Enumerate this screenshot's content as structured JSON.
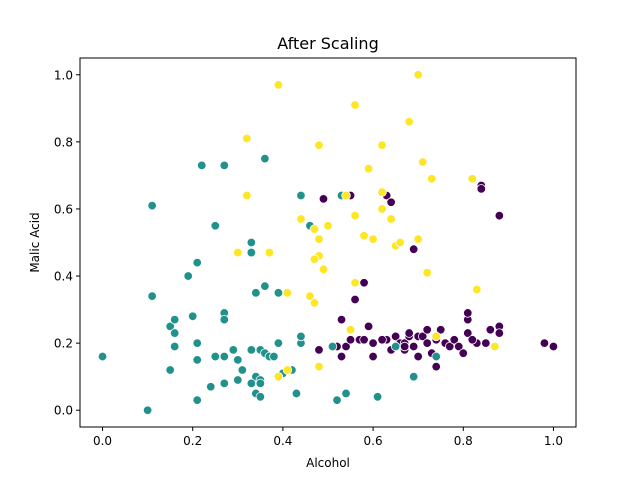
{
  "chart_data": {
    "type": "scatter",
    "title": "After Scaling",
    "xlabel": "Alcohol",
    "ylabel": "Malic Acid",
    "xlim": [
      -0.05,
      1.05
    ],
    "ylim": [
      -0.05,
      1.05
    ],
    "xticks": [
      0.0,
      0.2,
      0.4,
      0.6,
      0.8,
      1.0
    ],
    "yticks": [
      0.0,
      0.2,
      0.4,
      0.6,
      0.8,
      1.0
    ],
    "xtick_labels": [
      "0.0",
      "0.2",
      "0.4",
      "0.6",
      "0.8",
      "1.0"
    ],
    "ytick_labels": [
      "0.0",
      "0.2",
      "0.4",
      "0.6",
      "0.8",
      "1.0"
    ],
    "grid": false,
    "legend": false,
    "colors": {
      "class_0": "#440154",
      "class_1": "#21918c",
      "class_2": "#fde725",
      "point_edge": "#ffffff"
    },
    "series": [
      {
        "color_key": "class_0",
        "points": [
          [
            0.49,
            0.63
          ],
          [
            0.55,
            0.64
          ],
          [
            0.63,
            0.64
          ],
          [
            0.64,
            0.62
          ],
          [
            0.69,
            0.48
          ],
          [
            0.84,
            0.67
          ],
          [
            0.84,
            0.66
          ],
          [
            0.88,
            0.58
          ],
          [
            0.56,
            0.38
          ],
          [
            0.58,
            0.38
          ],
          [
            0.56,
            0.33
          ],
          [
            0.53,
            0.27
          ],
          [
            0.48,
            0.18
          ],
          [
            0.52,
            0.19
          ],
          [
            0.53,
            0.16
          ],
          [
            0.54,
            0.19
          ],
          [
            0.57,
            0.21
          ],
          [
            0.59,
            0.25
          ],
          [
            0.6,
            0.2
          ],
          [
            0.62,
            0.21
          ],
          [
            0.63,
            0.21
          ],
          [
            0.64,
            0.18
          ],
          [
            0.6,
            0.16
          ],
          [
            0.55,
            0.21
          ],
          [
            0.65,
            0.22
          ],
          [
            0.66,
            0.2
          ],
          [
            0.67,
            0.18
          ],
          [
            0.67,
            0.2
          ],
          [
            0.68,
            0.22
          ],
          [
            0.69,
            0.19
          ],
          [
            0.7,
            0.22
          ],
          [
            0.7,
            0.16
          ],
          [
            0.71,
            0.22
          ],
          [
            0.72,
            0.24
          ],
          [
            0.73,
            0.17
          ],
          [
            0.72,
            0.2
          ],
          [
            0.74,
            0.21
          ],
          [
            0.75,
            0.24
          ],
          [
            0.76,
            0.2
          ],
          [
            0.77,
            0.19
          ],
          [
            0.78,
            0.21
          ],
          [
            0.79,
            0.19
          ],
          [
            0.8,
            0.17
          ],
          [
            0.81,
            0.27
          ],
          [
            0.81,
            0.29
          ],
          [
            0.81,
            0.23
          ],
          [
            0.83,
            0.2
          ],
          [
            0.85,
            0.2
          ],
          [
            0.86,
            0.24
          ],
          [
            0.88,
            0.25
          ],
          [
            0.88,
            0.23
          ],
          [
            0.98,
            0.2
          ],
          [
            1.0,
            0.19
          ],
          [
            0.74,
            0.13
          ],
          [
            0.82,
            0.21
          ],
          [
            0.68,
            0.23
          ],
          [
            0.58,
            0.21
          ],
          [
            0.62,
            0.21
          ],
          [
            0.67,
            0.19
          ]
        ]
      },
      {
        "color_key": "class_1",
        "points": [
          [
            0.11,
            0.61
          ],
          [
            0.22,
            0.73
          ],
          [
            0.27,
            0.73
          ],
          [
            0.36,
            0.75
          ],
          [
            0.25,
            0.55
          ],
          [
            0.44,
            0.64
          ],
          [
            0.46,
            0.55
          ],
          [
            0.21,
            0.44
          ],
          [
            0.33,
            0.5
          ],
          [
            0.33,
            0.47
          ],
          [
            0.19,
            0.4
          ],
          [
            0.11,
            0.34
          ],
          [
            0.34,
            0.35
          ],
          [
            0.36,
            0.37
          ],
          [
            0.39,
            0.35
          ],
          [
            0.27,
            0.29
          ],
          [
            0.27,
            0.27
          ],
          [
            0.15,
            0.25
          ],
          [
            0.16,
            0.27
          ],
          [
            0.16,
            0.23
          ],
          [
            0.2,
            0.28
          ],
          [
            0.21,
            0.2
          ],
          [
            0.16,
            0.19
          ],
          [
            0.21,
            0.15
          ],
          [
            0.25,
            0.16
          ],
          [
            0.27,
            0.16
          ],
          [
            0.29,
            0.18
          ],
          [
            0.3,
            0.15
          ],
          [
            0.33,
            0.18
          ],
          [
            0.35,
            0.18
          ],
          [
            0.36,
            0.17
          ],
          [
            0.37,
            0.16
          ],
          [
            0.38,
            0.16
          ],
          [
            0.39,
            0.2
          ],
          [
            0.44,
            0.2
          ],
          [
            0.44,
            0.22
          ],
          [
            0.42,
            0.12
          ],
          [
            0.4,
            0.11
          ],
          [
            0.34,
            0.1
          ],
          [
            0.35,
            0.09
          ],
          [
            0.31,
            0.12
          ],
          [
            0.3,
            0.09
          ],
          [
            0.33,
            0.08
          ],
          [
            0.35,
            0.08
          ],
          [
            0.27,
            0.08
          ],
          [
            0.24,
            0.07
          ],
          [
            0.34,
            0.05
          ],
          [
            0.35,
            0.04
          ],
          [
            0.43,
            0.05
          ],
          [
            0.52,
            0.03
          ],
          [
            0.21,
            0.03
          ],
          [
            0.0,
            0.16
          ],
          [
            0.1,
            0.0
          ],
          [
            0.15,
            0.12
          ],
          [
            0.54,
            0.05
          ],
          [
            0.61,
            0.04
          ],
          [
            0.69,
            0.1
          ],
          [
            0.65,
            0.19
          ],
          [
            0.74,
            0.16
          ],
          [
            0.51,
            0.19
          ],
          [
            0.53,
            0.64
          ]
        ]
      },
      {
        "color_key": "class_2",
        "points": [
          [
            0.39,
            0.97
          ],
          [
            0.7,
            1.0
          ],
          [
            0.56,
            0.91
          ],
          [
            0.32,
            0.81
          ],
          [
            0.48,
            0.79
          ],
          [
            0.62,
            0.79
          ],
          [
            0.68,
            0.86
          ],
          [
            0.71,
            0.74
          ],
          [
            0.59,
            0.72
          ],
          [
            0.73,
            0.69
          ],
          [
            0.82,
            0.69
          ],
          [
            0.32,
            0.64
          ],
          [
            0.54,
            0.64
          ],
          [
            0.62,
            0.65
          ],
          [
            0.62,
            0.6
          ],
          [
            0.64,
            0.57
          ],
          [
            0.56,
            0.58
          ],
          [
            0.44,
            0.57
          ],
          [
            0.5,
            0.55
          ],
          [
            0.47,
            0.54
          ],
          [
            0.48,
            0.51
          ],
          [
            0.58,
            0.52
          ],
          [
            0.6,
            0.51
          ],
          [
            0.65,
            0.49
          ],
          [
            0.66,
            0.5
          ],
          [
            0.7,
            0.51
          ],
          [
            0.48,
            0.46
          ],
          [
            0.47,
            0.45
          ],
          [
            0.49,
            0.42
          ],
          [
            0.37,
            0.47
          ],
          [
            0.3,
            0.47
          ],
          [
            0.72,
            0.41
          ],
          [
            0.56,
            0.38
          ],
          [
            0.41,
            0.35
          ],
          [
            0.46,
            0.34
          ],
          [
            0.47,
            0.32
          ],
          [
            0.83,
            0.36
          ],
          [
            0.55,
            0.24
          ],
          [
            0.87,
            0.19
          ],
          [
            0.48,
            0.13
          ],
          [
            0.39,
            0.1
          ],
          [
            0.41,
            0.12
          ],
          [
            0.74,
            0.22
          ]
        ]
      }
    ]
  }
}
